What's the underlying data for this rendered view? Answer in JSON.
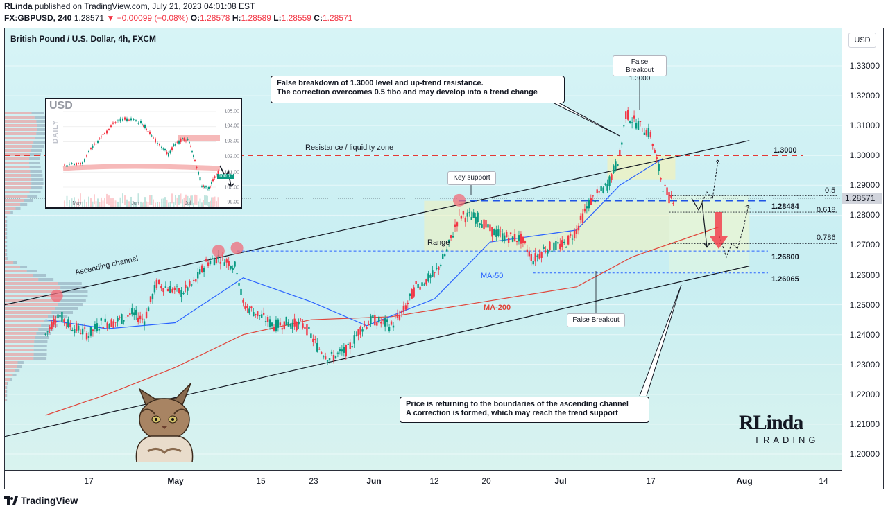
{
  "header": {
    "author": "RLinda",
    "published_text": "published on TradingView.com, July 21, 2023 04:01:08 EST",
    "symbol": "FX:GBPUSD, 240",
    "last": "1.28571",
    "change": "−0.00099 (−0.08%)",
    "o_label": "O:",
    "o_val": "1.28578",
    "h_label": "H:",
    "h_val": "1.28589",
    "l_label": "L:",
    "l_val": "1.28559",
    "c_label": "C:",
    "c_val": "1.28571"
  },
  "chart_title": "British Pound / U.S. Dollar, 4h, FXCM",
  "currency_label": "USD",
  "last_price_label": "1.28571",
  "footer_brand": "TradingView",
  "annotations": {
    "top_callout_line1": "False breakdown of 1.3000 level and up-trend resistance.",
    "top_callout_line2": "The correction overcomes 0.5 fibo and may develop into a trend change",
    "bottom_callout_line1": "Price is returning to the boundaries of the ascending channel",
    "bottom_callout_line2": "A correction is formed, which may reach the trend support",
    "false_breakout_top_line1": "False Breakout",
    "false_breakout_top_line2": "1.3000",
    "false_breakout_bottom": "False Breakout",
    "key_support": "Key support",
    "resistance_zone": "Resistance / liquidity zone",
    "range": "Range",
    "ascending_channel": "Ascending channel",
    "ma50": "MA-50",
    "ma200": "MA-200",
    "level_13000": "1.3000",
    "level_128484": "1.28484",
    "level_126800": "1.26800",
    "level_126065": "1.26065",
    "fib_05": "0.5",
    "fib_0618": "0.618",
    "fib_0786": "0.786"
  },
  "inset": {
    "title": "USD",
    "side_label": "DAILY",
    "y_ticks": [
      "105.00",
      "104.00",
      "103.00",
      "102.00",
      "101.00",
      "100.00",
      "99.00"
    ],
    "x_ticks": [
      "May",
      "Jun",
      "Jul"
    ],
    "last_tag": "100.77"
  },
  "logo": {
    "main": "RLinda",
    "sub": "TRADING"
  },
  "colors": {
    "up": "#089981",
    "down": "#f23645",
    "ma50": "#2962ff",
    "ma200": "#e0453a",
    "resistance": "#e53935",
    "support": "#1e53e5"
  },
  "chart_data": {
    "type": "candlestick",
    "symbol": "GBPUSD",
    "timeframe": "4h",
    "y_axis": {
      "ticks": [
        1.2,
        1.21,
        1.22,
        1.23,
        1.24,
        1.25,
        1.26,
        1.27,
        1.28,
        1.29,
        1.3,
        1.31,
        1.32,
        1.33
      ],
      "range": [
        1.193,
        1.338
      ]
    },
    "x_axis": {
      "ticks": [
        "17",
        "May",
        "15",
        "23",
        "Jun",
        "12",
        "20",
        "Jul",
        "17",
        "Aug",
        "14"
      ]
    },
    "close_path": [
      [
        "Apr 10",
        1.24
      ],
      [
        "Apr 12",
        1.247
      ],
      [
        "Apr 14",
        1.243
      ],
      [
        "Apr 17",
        1.24
      ],
      [
        "Apr 19",
        1.244
      ],
      [
        "Apr 21",
        1.244
      ],
      [
        "Apr 24",
        1.247
      ],
      [
        "Apr 26",
        1.245
      ],
      [
        "Apr 28",
        1.257
      ],
      [
        "May 2",
        1.254
      ],
      [
        "May 4",
        1.257
      ],
      [
        "May 6",
        1.264
      ],
      [
        "May 8",
        1.266
      ],
      [
        "May 10",
        1.264
      ],
      [
        "May 11",
        1.262
      ],
      [
        "May 12",
        1.25
      ],
      [
        "May 15",
        1.246
      ],
      [
        "May 17",
        1.243
      ],
      [
        "May 19",
        1.244
      ],
      [
        "May 22",
        1.243
      ],
      [
        "May 24",
        1.236
      ],
      [
        "May 26",
        1.232
      ],
      [
        "May 29",
        1.235
      ],
      [
        "May 31",
        1.242
      ],
      [
        "Jun 2",
        1.245
      ],
      [
        "Jun 5",
        1.243
      ],
      [
        "Jun 7",
        1.248
      ],
      [
        "Jun 9",
        1.256
      ],
      [
        "Jun 12",
        1.26
      ],
      [
        "Jun 14",
        1.268
      ],
      [
        "Jun 16",
        1.28
      ],
      [
        "Jun 19",
        1.279
      ],
      [
        "Jun 21",
        1.275
      ],
      [
        "Jun 23",
        1.273
      ],
      [
        "Jun 26",
        1.272
      ],
      [
        "Jun 28",
        1.265
      ],
      [
        "Jun 30",
        1.269
      ],
      [
        "Jul 3",
        1.27
      ],
      [
        "Jul 5",
        1.275
      ],
      [
        "Jul 7",
        1.284
      ],
      [
        "Jul 10",
        1.29
      ],
      [
        "Jul 12",
        1.3
      ],
      [
        "Jul 13",
        1.314
      ],
      [
        "Jul 14",
        1.312
      ],
      [
        "Jul 17",
        1.307
      ],
      [
        "Jul 18",
        1.298
      ],
      [
        "Jul 19",
        1.29
      ],
      [
        "Jul 20",
        1.286
      ],
      [
        "Jul 21",
        1.2857
      ]
    ],
    "levels": [
      {
        "name": "1.3000",
        "value": 1.3
      },
      {
        "name": "1.28484",
        "value": 1.28484
      },
      {
        "name": "1.26800",
        "value": 1.268
      },
      {
        "name": "1.26065",
        "value": 1.26065
      }
    ],
    "fib_levels": [
      {
        "name": "0.5",
        "value": 1.2865
      },
      {
        "name": "0.618",
        "value": 1.281
      },
      {
        "name": "0.786",
        "value": 1.2705
      }
    ],
    "ma50": [
      [
        "Apr 10",
        1.245
      ],
      [
        "Apr 20",
        1.242
      ],
      [
        "May 1",
        1.244
      ],
      [
        "May 12",
        1.259
      ],
      [
        "May 23",
        1.251
      ],
      [
        "Jun 1",
        1.243
      ],
      [
        "Jun 12",
        1.252
      ],
      [
        "Jun 21",
        1.271
      ],
      [
        "Jun 28",
        1.273
      ],
      [
        "Jul 5",
        1.275
      ],
      [
        "Jul 12",
        1.29
      ],
      [
        "Jul 19",
        1.299
      ]
    ],
    "ma200": [
      [
        "Apr 10",
        1.213
      ],
      [
        "Apr 20",
        1.22
      ],
      [
        "May 1",
        1.229
      ],
      [
        "May 12",
        1.24
      ],
      [
        "May 23",
        1.245
      ],
      [
        "Jun 5",
        1.246
      ],
      [
        "Jun 20",
        1.251
      ],
      [
        "Jul 5",
        1.256
      ],
      [
        "Jul 14",
        1.266
      ],
      [
        "Jul 28",
        1.276
      ]
    ],
    "channel_upper": [
      [
        "Apr 10",
        1.253
      ],
      [
        "Aug 2",
        1.305
      ]
    ],
    "channel_lower": [
      [
        "Apr 10",
        1.209
      ],
      [
        "Aug 2",
        1.263
      ]
    ]
  }
}
